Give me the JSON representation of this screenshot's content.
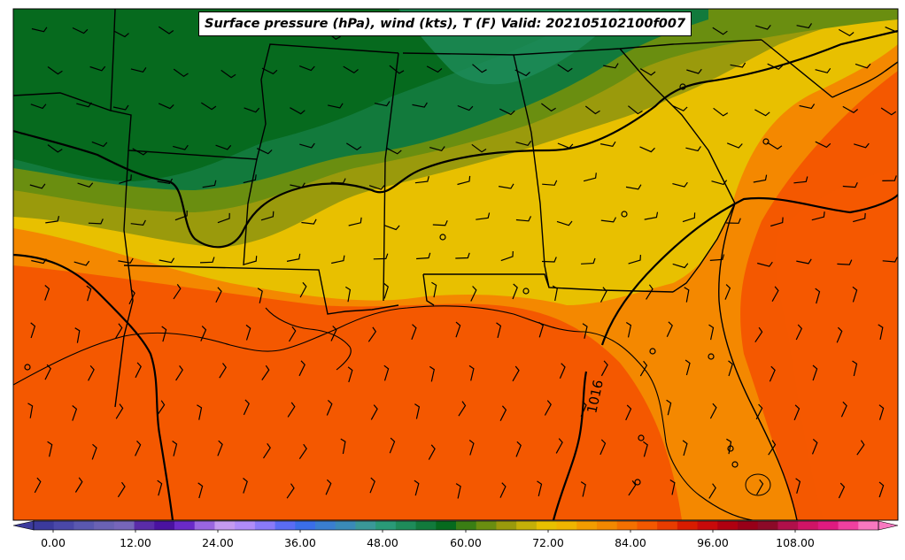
{
  "title": "Surface pressure (hPa), wind (kts), T (F) Valid: 202105102100f007",
  "isobar_label": "1016",
  "colorbar": {
    "ticks": [
      "0.00",
      "12.00",
      "24.00",
      "36.00",
      "48.00",
      "60.00",
      "72.00",
      "84.00",
      "96.00",
      "108.00"
    ],
    "colors": [
      "#3b3a9c",
      "#4a48a8",
      "#5a58b0",
      "#6a62b4",
      "#7666ba",
      "#5a2ca8",
      "#4a12a0",
      "#6a2ac8",
      "#9a66e0",
      "#c49af0",
      "#b08cf8",
      "#8a7af8",
      "#5a6cf4",
      "#3a6ee8",
      "#3a7ed0",
      "#3a8ab8",
      "#3a9898",
      "#2a9a78",
      "#1e8c5a",
      "#127a3c",
      "#066a1e",
      "#3a7e14",
      "#6a8e10",
      "#9a9a0c",
      "#c4b008",
      "#e8c000",
      "#f0b400",
      "#f49c00",
      "#f48800",
      "#f47000",
      "#f45800",
      "#e83c00",
      "#d81c00",
      "#c80a0a",
      "#b00010",
      "#980018",
      "#8c0a28",
      "#b0104a",
      "#d01466",
      "#e01a80",
      "#f040a0",
      "#f878c0"
    ]
  },
  "region_colors": {
    "dark_green": "#066a1e",
    "mid_green": "#127a3c",
    "olive": "#6a8e10",
    "yellow_olive": "#9a9a0c",
    "yellow": "#e8c000",
    "orange": "#f48800",
    "deep_orange": "#f45800"
  }
}
